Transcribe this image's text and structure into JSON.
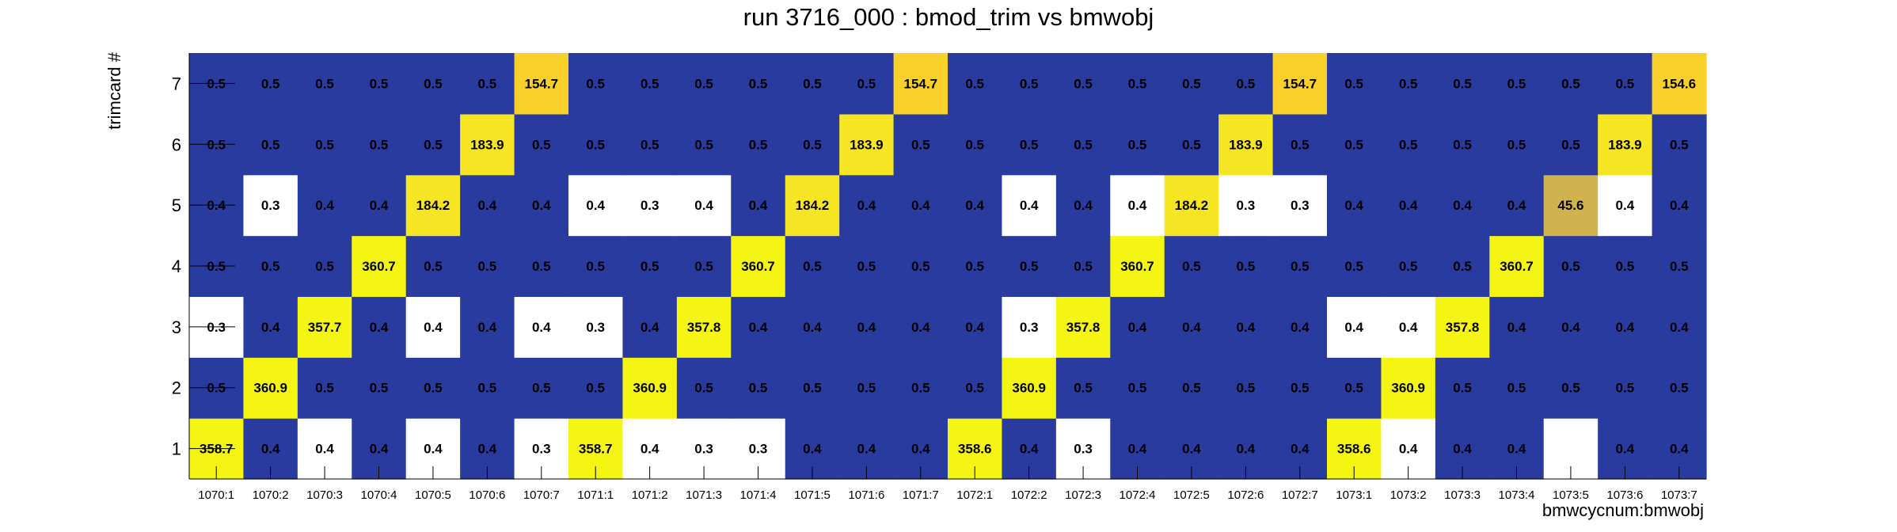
{
  "chart_data": {
    "type": "heatmap",
    "title": "run 3716_000 : bmod_trim vs bmwobj",
    "xlabel": "bmwcycnum:bmwobj",
    "ylabel": "trimcard #",
    "x_categories": [
      "1070:1",
      "1070:2",
      "1070:3",
      "1070:4",
      "1070:5",
      "1070:6",
      "1070:7",
      "1071:1",
      "1071:2",
      "1071:3",
      "1071:4",
      "1071:5",
      "1071:6",
      "1071:7",
      "1072:1",
      "1072:2",
      "1072:3",
      "1072:4",
      "1072:5",
      "1072:6",
      "1072:7",
      "1073:1",
      "1073:2",
      "1073:3",
      "1073:4",
      "1073:5",
      "1073:6",
      "1073:7"
    ],
    "y_categories": [
      "1",
      "2",
      "3",
      "4",
      "5",
      "6",
      "7"
    ],
    "values": [
      [
        358.7,
        0.4,
        0.4,
        0.4,
        0.4,
        0.4,
        0.3,
        358.7,
        0.4,
        0.3,
        0.3,
        0.4,
        0.4,
        0.4,
        358.6,
        0.4,
        0.3,
        0.4,
        0.4,
        0.4,
        0.4,
        358.6,
        0.4,
        0.4,
        0.4,
        null,
        0.4,
        0.4
      ],
      [
        0.5,
        360.9,
        0.5,
        0.5,
        0.5,
        0.5,
        0.5,
        0.5,
        360.9,
        0.5,
        0.5,
        0.5,
        0.5,
        0.5,
        0.5,
        360.9,
        0.5,
        0.5,
        0.5,
        0.5,
        0.5,
        0.5,
        360.9,
        0.5,
        0.5,
        0.5,
        0.5,
        0.5
      ],
      [
        0.3,
        0.4,
        357.7,
        0.4,
        0.4,
        0.4,
        0.4,
        0.3,
        0.4,
        357.8,
        0.4,
        0.4,
        0.4,
        0.4,
        0.4,
        0.3,
        357.8,
        0.4,
        0.4,
        0.4,
        0.4,
        0.4,
        0.4,
        357.8,
        0.4,
        0.4,
        0.4,
        0.4
      ],
      [
        0.5,
        0.5,
        0.5,
        360.7,
        0.5,
        0.5,
        0.5,
        0.5,
        0.5,
        0.5,
        360.7,
        0.5,
        0.5,
        0.5,
        0.5,
        0.5,
        0.5,
        360.7,
        0.5,
        0.5,
        0.5,
        0.5,
        0.5,
        0.5,
        360.7,
        0.5,
        0.5,
        0.5
      ],
      [
        0.4,
        0.3,
        0.4,
        0.4,
        184.2,
        0.4,
        0.4,
        0.4,
        0.3,
        0.4,
        0.4,
        184.2,
        0.4,
        0.4,
        0.4,
        0.4,
        0.4,
        0.4,
        184.2,
        0.3,
        0.3,
        0.4,
        0.4,
        0.4,
        0.4,
        45.6,
        0.4,
        0.4
      ],
      [
        0.5,
        0.5,
        0.5,
        0.5,
        0.5,
        183.9,
        0.5,
        0.5,
        0.5,
        0.5,
        0.5,
        0.5,
        183.9,
        0.5,
        0.5,
        0.5,
        0.5,
        0.5,
        0.5,
        183.9,
        0.5,
        0.5,
        0.5,
        0.5,
        0.5,
        0.5,
        183.9,
        0.5
      ],
      [
        0.5,
        0.5,
        0.5,
        0.5,
        0.5,
        0.5,
        154.7,
        0.5,
        0.5,
        0.5,
        0.5,
        0.5,
        0.5,
        154.7,
        0.5,
        0.5,
        0.5,
        0.5,
        0.5,
        0.5,
        154.7,
        0.5,
        0.5,
        0.5,
        0.5,
        0.5,
        0.5,
        154.6
      ]
    ],
    "white_cells": [
      [
        2,
        0
      ],
      [
        4,
        0
      ],
      [
        6,
        0
      ],
      [
        8,
        0
      ],
      [
        9,
        0
      ],
      [
        10,
        0
      ],
      [
        16,
        0
      ],
      [
        22,
        0
      ],
      [
        25,
        0
      ],
      [
        0,
        2
      ],
      [
        4,
        2
      ],
      [
        6,
        2
      ],
      [
        7,
        2
      ],
      [
        15,
        2
      ],
      [
        21,
        2
      ],
      [
        22,
        2
      ],
      [
        1,
        4
      ],
      [
        7,
        4
      ],
      [
        8,
        4
      ],
      [
        9,
        4
      ],
      [
        15,
        4
      ],
      [
        17,
        4
      ],
      [
        19,
        4
      ],
      [
        20,
        4
      ],
      [
        26,
        4
      ]
    ],
    "colors": {
      "low": "#2a3b9f",
      "blank": "#ffffff",
      "high_360": "#f5f513",
      "high_184": "#f5e523",
      "high_154": "#f9cf2a",
      "mid_45": "#d0b24f"
    },
    "grid": false
  }
}
